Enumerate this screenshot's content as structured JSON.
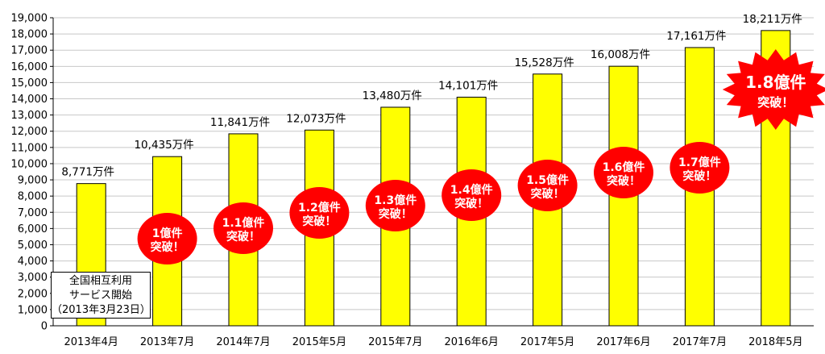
{
  "chart_data": {
    "type": "bar",
    "categories": [
      "2013年4月",
      "2013年7月",
      "2014年7月",
      "2015年5月",
      "2015年7月",
      "2016年6月",
      "2017年5月",
      "2017年6月",
      "2017年7月",
      "2018年5月"
    ],
    "values": [
      8771,
      10435,
      11841,
      12073,
      13480,
      14101,
      15528,
      16008,
      17161,
      18211
    ],
    "data_labels": [
      "8,771万件",
      "10,435万件",
      "11,841万件",
      "12,073万件",
      "13,480万件",
      "14,101万件",
      "15,528万件",
      "16,008万件",
      "17,161万件",
      "18,211万件"
    ],
    "ylim": [
      0,
      19000
    ],
    "y_ticks": [
      "0",
      "1,000",
      "2,000",
      "3,000",
      "4,000",
      "5,000",
      "6,000",
      "7,000",
      "8,000",
      "9,000",
      "10,000",
      "11,000",
      "12,000",
      "13,000",
      "14,000",
      "15,000",
      "16,000",
      "17,000",
      "18,000",
      "19,000"
    ],
    "grid": true,
    "bar_color": "#FFFF00",
    "milestones": [
      {
        "category": "2013年7月",
        "line1": "1億件",
        "line2": "突破！",
        "shape": "oval"
      },
      {
        "category": "2014年7月",
        "line1": "1.1億件",
        "line2": "突破！",
        "shape": "oval"
      },
      {
        "category": "2015年5月",
        "line1": "1.2億件",
        "line2": "突破！",
        "shape": "oval"
      },
      {
        "category": "2015年7月",
        "line1": "1.3億件",
        "line2": "突破！",
        "shape": "oval"
      },
      {
        "category": "2016年6月",
        "line1": "1.4億件",
        "line2": "突破！",
        "shape": "oval"
      },
      {
        "category": "2017年5月",
        "line1": "1.5億件",
        "line2": "突破！",
        "shape": "oval"
      },
      {
        "category": "2017年6月",
        "line1": "1.6億件",
        "line2": "突破！",
        "shape": "oval"
      },
      {
        "category": "2017年7月",
        "line1": "1.7億件",
        "line2": "突破！",
        "shape": "oval"
      },
      {
        "category": "2018年5月",
        "line1": "1.8億件",
        "line2": "突破！",
        "shape": "burst"
      }
    ],
    "milestone_color": "#FF0000"
  },
  "note": {
    "line1": "全国相互利用",
    "line2": "サービス開始",
    "line3": "（2013年3月23日）"
  }
}
